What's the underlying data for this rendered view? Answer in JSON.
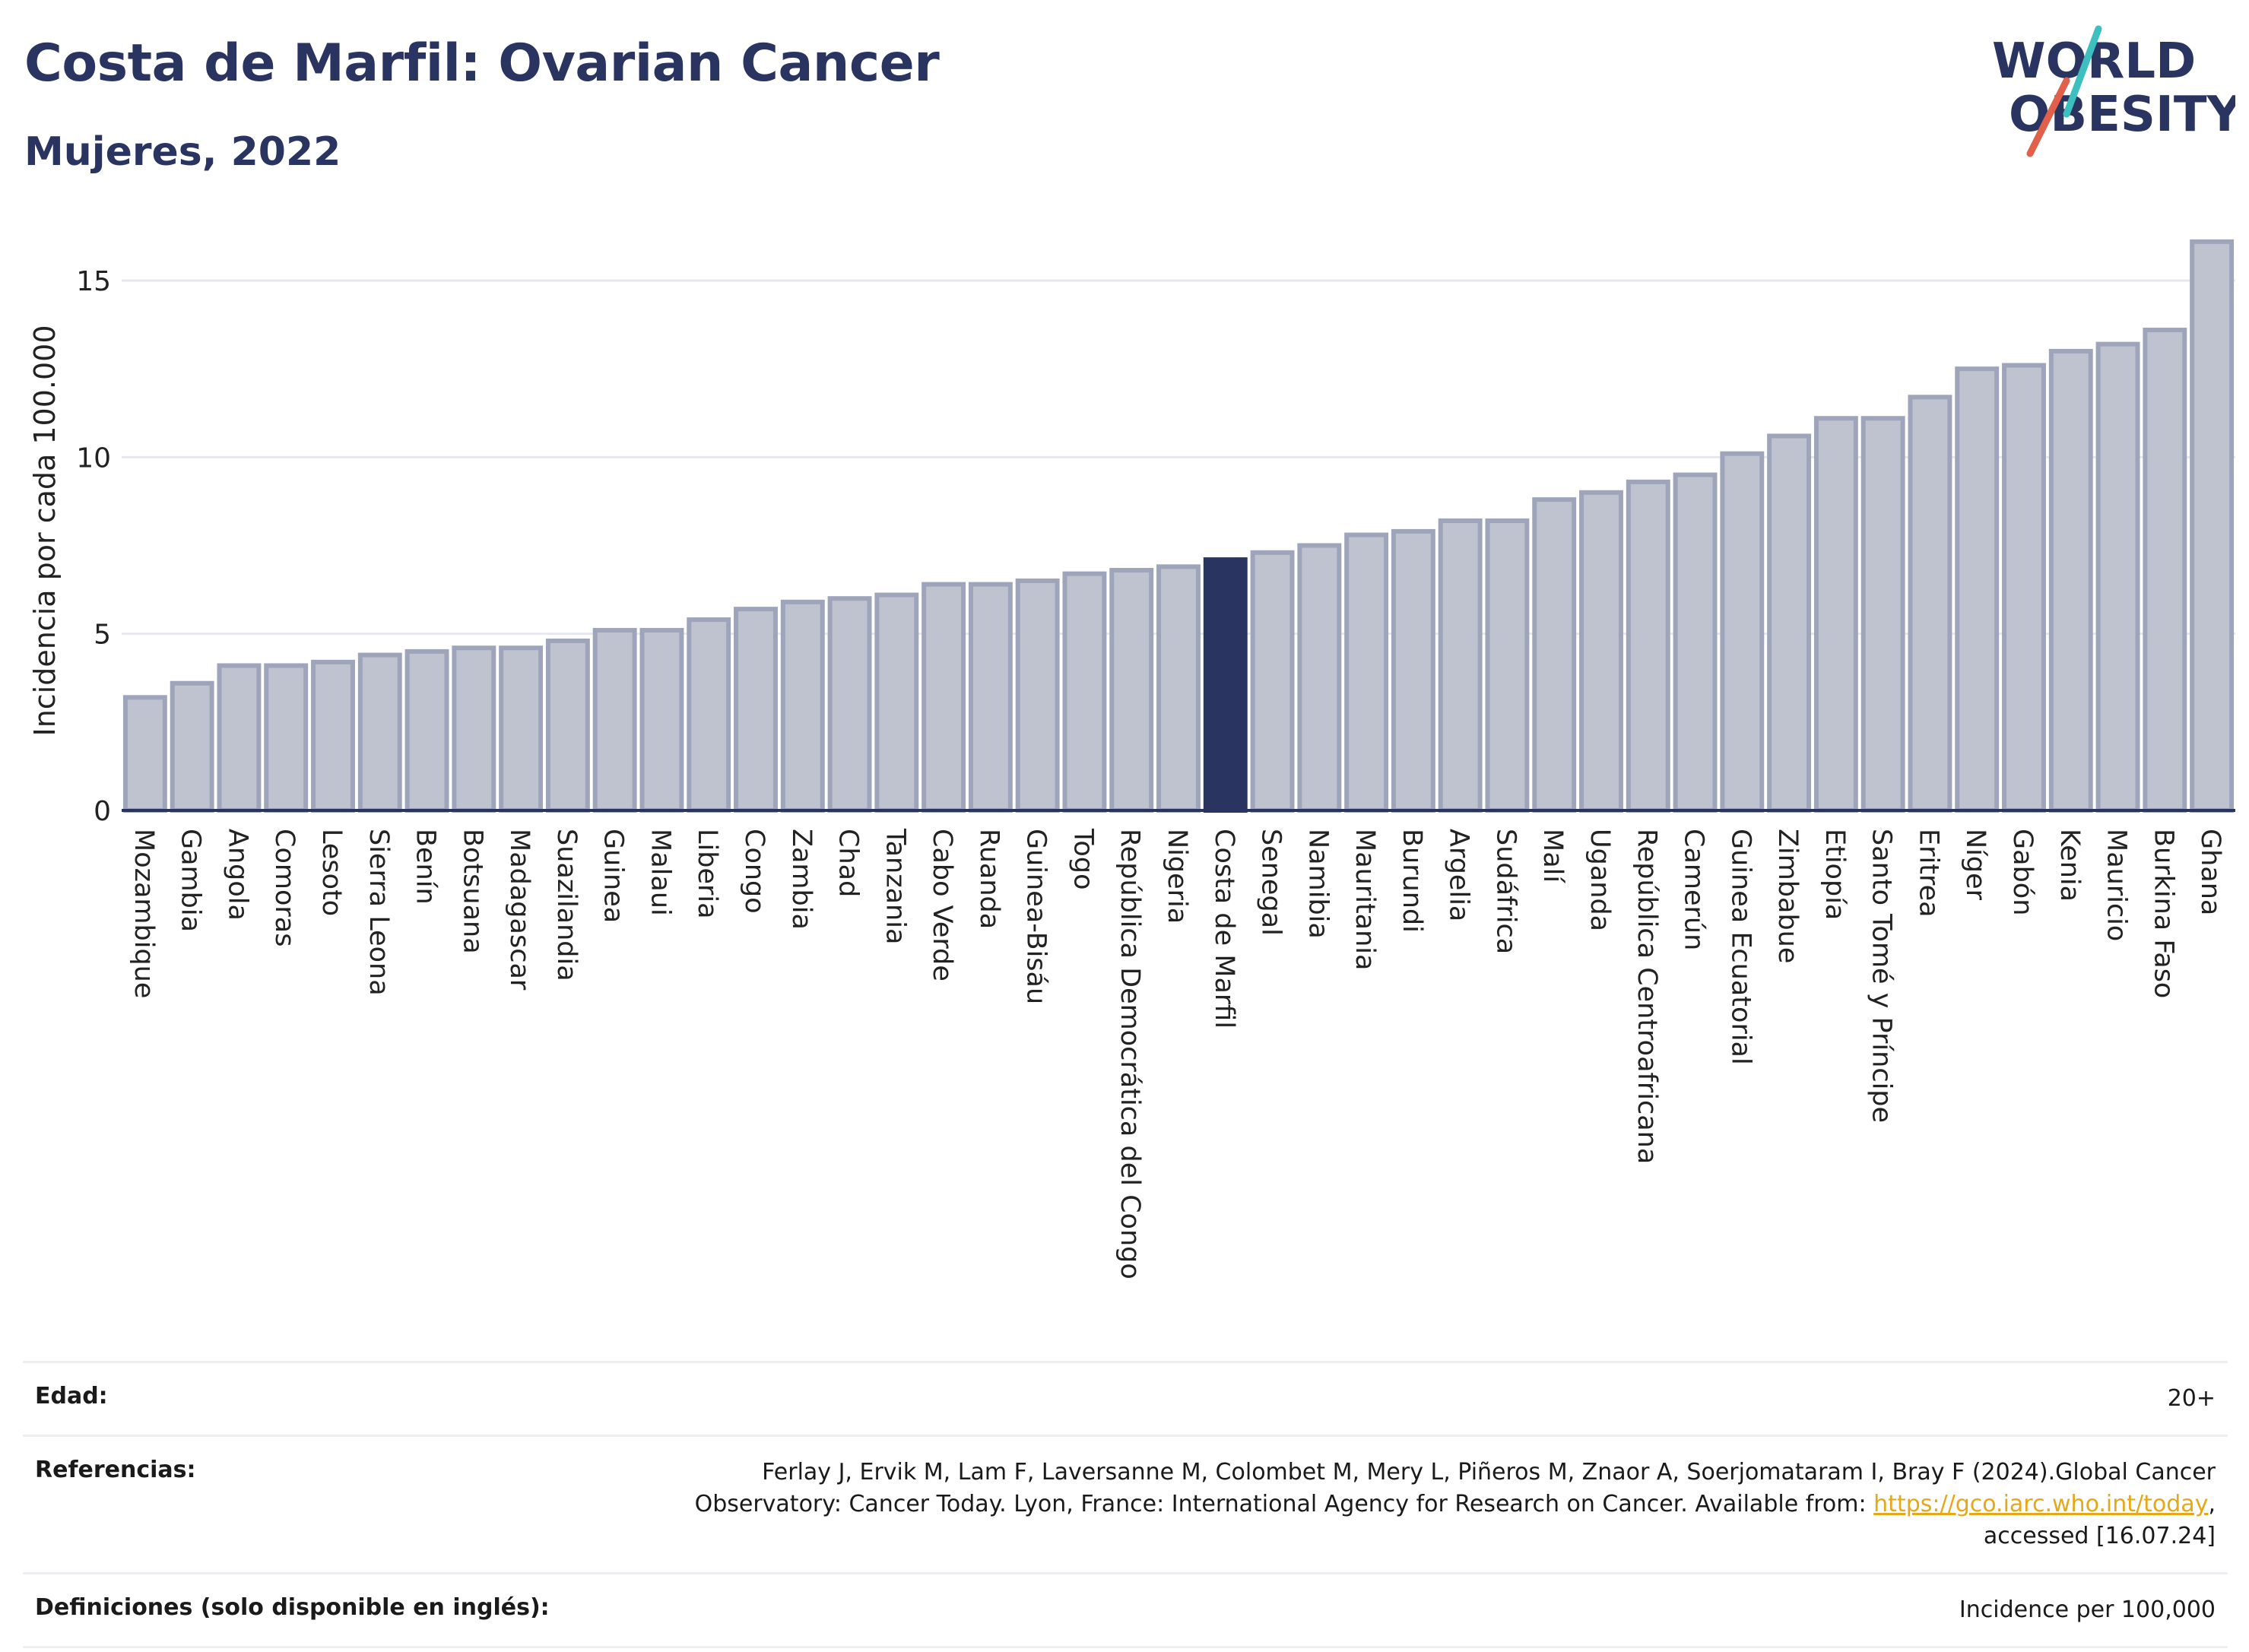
{
  "header": {
    "title": "Costa de Marfil: Ovarian Cancer",
    "subtitle": "Mujeres, 2022"
  },
  "logo": {
    "line1": "WORLD",
    "line2": "OBESITY",
    "colors": {
      "text": "#2a3460",
      "slash_teal": "#3bbfbf",
      "slash_red": "#e0604a"
    }
  },
  "chart_data": {
    "type": "bar",
    "title": "Costa de Marfil: Ovarian Cancer",
    "subtitle": "Mujeres, 2022",
    "ylabel": "Incidencia por cada 100.000",
    "xlabel": "",
    "ylim": [
      0,
      16.7
    ],
    "yticks": [
      0,
      5,
      10,
      15
    ],
    "grid": true,
    "highlight": "Costa de Marfil",
    "colors": {
      "bar": "#bfc3d0",
      "bar_edge": "#9ea4ba",
      "highlight": "#2a3460",
      "axis": "#2a3460",
      "grid": "#e6e8ee"
    },
    "categories": [
      "Mozambique",
      "Gambia",
      "Angola",
      "Comoras",
      "Lesoto",
      "Sierra Leona",
      "Benín",
      "Botsuana",
      "Madagascar",
      "Suazilandia",
      "Guinea",
      "Malaui",
      "Liberia",
      "Congo",
      "Zambia",
      "Chad",
      "Tanzania",
      "Cabo Verde",
      "Ruanda",
      "Guinea-Bisáu",
      "Togo",
      "República Democrática del Congo",
      "Nigeria",
      "Costa de Marfil",
      "Senegal",
      "Namibia",
      "Mauritania",
      "Burundi",
      "Argelia",
      "Sudáfrica",
      "Malí",
      "Uganda",
      "República Centroafricana",
      "Camerún",
      "Guinea Ecuatorial",
      "Zimbabue",
      "Etiopía",
      "Santo Tomé y Príncipe",
      "Eritrea",
      "Níger",
      "Gabón",
      "Kenia",
      "Mauricio",
      "Burkina Faso",
      "Ghana"
    ],
    "values": [
      3.2,
      3.6,
      4.1,
      4.1,
      4.2,
      4.4,
      4.5,
      4.6,
      4.6,
      4.8,
      5.1,
      5.1,
      5.4,
      5.7,
      5.9,
      6.0,
      6.1,
      6.4,
      6.4,
      6.5,
      6.7,
      6.8,
      6.9,
      7.1,
      7.3,
      7.5,
      7.8,
      7.9,
      8.2,
      8.2,
      8.8,
      9.0,
      9.3,
      9.5,
      10.1,
      10.6,
      11.1,
      11.1,
      11.7,
      12.5,
      12.6,
      13.0,
      13.2,
      13.6,
      16.1
    ]
  },
  "info": {
    "age_label": "Edad:",
    "age_value": "20+",
    "references_label": "Referencias:",
    "references_text_1": "Ferlay J, Ervik M, Lam F, Laversanne M, Colombet M, Mery L, Piñeros M, Znaor A, Soerjomataram I, Bray F (2024).Global Cancer",
    "references_text_2": "Observatory: Cancer Today. Lyon, France: International Agency for Research on Cancer. Available from: ",
    "references_link": "https://gco.iarc.who.int/today",
    "references_text_3": ",",
    "references_text_4": "accessed [16.07.24]",
    "definitions_label": "Definiciones (solo disponible en inglés):",
    "definitions_value": "Incidence per 100,000"
  }
}
